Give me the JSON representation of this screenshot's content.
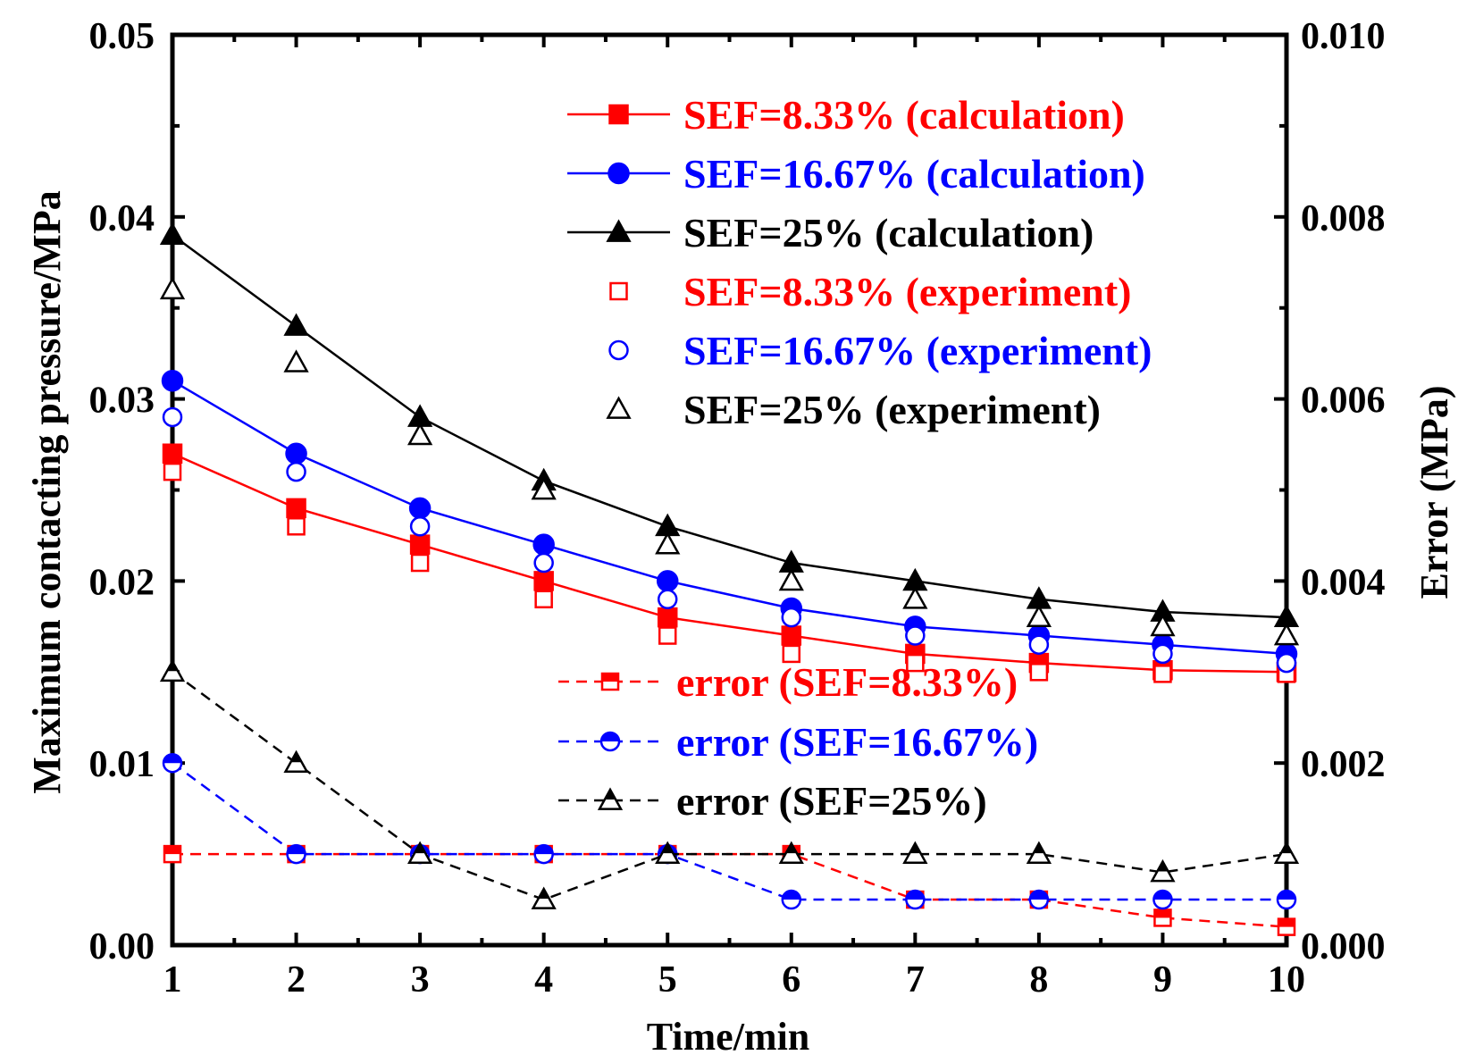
{
  "chart_data": {
    "type": "line",
    "title": "",
    "xlabel": "Time/min",
    "ylabel": "Maximum contacting pressure/MPa",
    "y2label": "Error (MPa)",
    "x": [
      1,
      2,
      3,
      4,
      5,
      6,
      7,
      8,
      9,
      10
    ],
    "xlim": [
      1,
      10
    ],
    "ylim": [
      0,
      0.05
    ],
    "y2lim": [
      0,
      0.01
    ],
    "xticks": [
      "1",
      "2",
      "3",
      "4",
      "5",
      "6",
      "7",
      "8",
      "9",
      "10"
    ],
    "yticks": [
      "0.00",
      "0.01",
      "0.02",
      "0.03",
      "0.04",
      "0.05"
    ],
    "y2ticks": [
      "0.000",
      "0.002",
      "0.004",
      "0.006",
      "0.008",
      "0.010"
    ],
    "legend_position": "top-right",
    "series": [
      {
        "name": "SEF=8.33% (calculation)",
        "color": "#ff0000",
        "marker": "square-filled",
        "line": "solid",
        "axis": "left",
        "values": [
          0.027,
          0.024,
          0.022,
          0.02,
          0.018,
          0.017,
          0.016,
          0.0155,
          0.0151,
          0.015
        ]
      },
      {
        "name": "SEF=16.67% (calculation)",
        "color": "#0000ff",
        "marker": "circle-filled",
        "line": "solid",
        "axis": "left",
        "values": [
          0.031,
          0.027,
          0.024,
          0.022,
          0.02,
          0.0185,
          0.0175,
          0.017,
          0.0165,
          0.016
        ]
      },
      {
        "name": "SEF=25% (calculation)",
        "color": "#000000",
        "marker": "triangle-filled",
        "line": "solid",
        "axis": "left",
        "values": [
          0.039,
          0.034,
          0.029,
          0.0255,
          0.023,
          0.021,
          0.02,
          0.019,
          0.0183,
          0.018
        ]
      },
      {
        "name": "SEF=8.33% (experiment)",
        "color": "#ff0000",
        "marker": "square-open",
        "line": "none",
        "axis": "left",
        "values": [
          0.026,
          0.023,
          0.021,
          0.019,
          0.017,
          0.016,
          0.0155,
          0.015,
          0.0149,
          0.0149
        ]
      },
      {
        "name": "SEF=16.67% (experiment)",
        "color": "#0000ff",
        "marker": "circle-open",
        "line": "none",
        "axis": "left",
        "values": [
          0.029,
          0.026,
          0.023,
          0.021,
          0.019,
          0.018,
          0.017,
          0.0165,
          0.016,
          0.0155
        ]
      },
      {
        "name": "SEF=25% (experiment)",
        "color": "#000000",
        "marker": "triangle-open",
        "line": "none",
        "axis": "left",
        "values": [
          0.036,
          0.032,
          0.028,
          0.025,
          0.022,
          0.02,
          0.019,
          0.018,
          0.0175,
          0.017
        ]
      },
      {
        "name": "error (SEF=8.33%)",
        "color": "#ff0000",
        "marker": "square-half",
        "line": "dashed",
        "axis": "right",
        "values": [
          0.001,
          0.001,
          0.001,
          0.001,
          0.001,
          0.001,
          0.0005,
          0.0005,
          0.0003,
          0.0002
        ]
      },
      {
        "name": "error (SEF=16.67%)",
        "color": "#0000ff",
        "marker": "circle-half",
        "line": "dashed",
        "axis": "right",
        "values": [
          0.002,
          0.001,
          0.001,
          0.001,
          0.001,
          0.0005,
          0.0005,
          0.0005,
          0.0005,
          0.0005
        ]
      },
      {
        "name": "error (SEF=25%)",
        "color": "#000000",
        "marker": "triangle-half",
        "line": "dashed",
        "axis": "right",
        "values": [
          0.003,
          0.002,
          0.001,
          0.0005,
          0.001,
          0.001,
          0.001,
          0.001,
          0.0008,
          0.001
        ]
      }
    ]
  }
}
